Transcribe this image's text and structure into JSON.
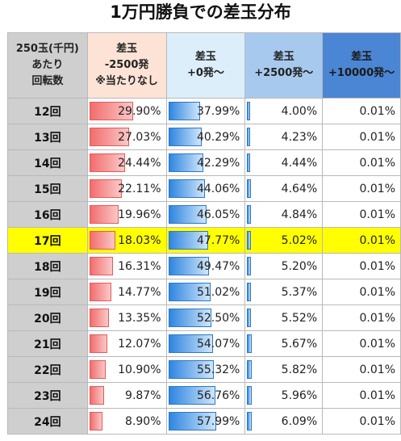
{
  "title": "1万円勝負での差玉分布",
  "header": {
    "col0": [
      "250玉(千円)",
      "あたり",
      "回転数"
    ],
    "col1": [
      "差玉",
      "-2500発",
      "※当たりなし"
    ],
    "col2": [
      "差玉",
      "+0発～"
    ],
    "col3": [
      "差玉",
      "+2500発～"
    ],
    "col4": [
      "差玉",
      "+10000発～"
    ]
  },
  "rows": [
    {
      "label": "12回",
      "c1": "29.90%",
      "c2": "37.99%",
      "c3": "4.00%",
      "c4": "0.01%",
      "v1": 29.9,
      "v2": 37.99,
      "v3": 4.0,
      "v4": 0.01
    },
    {
      "label": "13回",
      "c1": "27.03%",
      "c2": "40.29%",
      "c3": "4.23%",
      "c4": "0.01%",
      "v1": 27.03,
      "v2": 40.29,
      "v3": 4.23,
      "v4": 0.01
    },
    {
      "label": "14回",
      "c1": "24.44%",
      "c2": "42.29%",
      "c3": "4.44%",
      "c4": "0.01%",
      "v1": 24.44,
      "v2": 42.29,
      "v3": 4.44,
      "v4": 0.01
    },
    {
      "label": "15回",
      "c1": "22.11%",
      "c2": "44.06%",
      "c3": "4.64%",
      "c4": "0.01%",
      "v1": 22.11,
      "v2": 44.06,
      "v3": 4.64,
      "v4": 0.01
    },
    {
      "label": "16回",
      "c1": "19.96%",
      "c2": "46.05%",
      "c3": "4.84%",
      "c4": "0.01%",
      "v1": 19.96,
      "v2": 46.05,
      "v3": 4.84,
      "v4": 0.01
    },
    {
      "label": "17回",
      "c1": "18.03%",
      "c2": "47.77%",
      "c3": "5.02%",
      "c4": "0.01%",
      "v1": 18.03,
      "v2": 47.77,
      "v3": 5.02,
      "v4": 0.01,
      "highlight": true
    },
    {
      "label": "18回",
      "c1": "16.31%",
      "c2": "49.47%",
      "c3": "5.20%",
      "c4": "0.01%",
      "v1": 16.31,
      "v2": 49.47,
      "v3": 5.2,
      "v4": 0.01
    },
    {
      "label": "19回",
      "c1": "14.77%",
      "c2": "51.02%",
      "c3": "5.37%",
      "c4": "0.01%",
      "v1": 14.77,
      "v2": 51.02,
      "v3": 5.37,
      "v4": 0.01
    },
    {
      "label": "20回",
      "c1": "13.35%",
      "c2": "52.50%",
      "c3": "5.52%",
      "c4": "0.01%",
      "v1": 13.35,
      "v2": 52.5,
      "v3": 5.52,
      "v4": 0.01
    },
    {
      "label": "21回",
      "c1": "12.07%",
      "c2": "54.07%",
      "c3": "5.67%",
      "c4": "0.01%",
      "v1": 12.07,
      "v2": 54.07,
      "v3": 5.67,
      "v4": 0.01
    },
    {
      "label": "22回",
      "c1": "10.90%",
      "c2": "55.32%",
      "c3": "5.82%",
      "c4": "0.01%",
      "v1": 10.9,
      "v2": 55.32,
      "v3": 5.82,
      "v4": 0.01
    },
    {
      "label": "23回",
      "c1": "9.87%",
      "c2": "56.76%",
      "c3": "5.96%",
      "c4": "0.01%",
      "v1": 9.87,
      "v2": 56.76,
      "v3": 5.96,
      "v4": 0.01
    },
    {
      "label": "24回",
      "c1": "8.90%",
      "c2": "57.99%",
      "c3": "6.09%",
      "c4": "0.01%",
      "v1": 8.9,
      "v2": 57.99,
      "v3": 6.09,
      "v4": 0.01
    }
  ],
  "colors": {
    "highlight": "#ffff00",
    "loss_bar": "#f26d6d",
    "win_bar": "#2f86e0"
  }
}
